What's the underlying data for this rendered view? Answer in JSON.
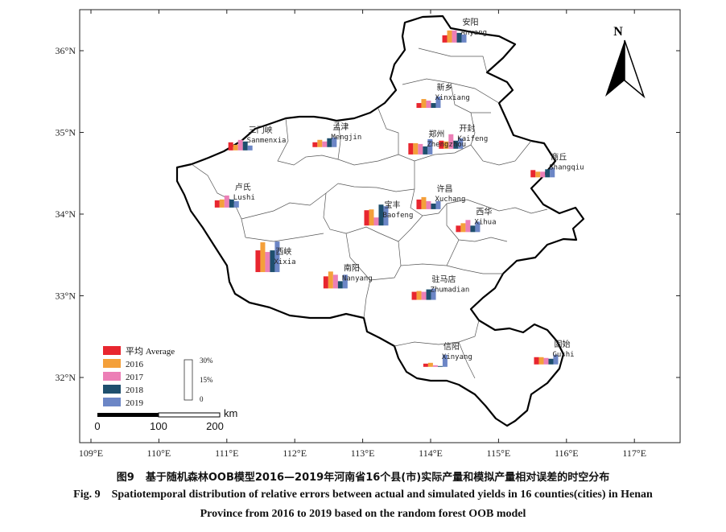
{
  "map": {
    "axes": {
      "lon_ticks": [
        "109°E",
        "110°E",
        "111°E",
        "112°E",
        "113°E",
        "114°E",
        "115°E",
        "116°E",
        "117°E"
      ],
      "lat_ticks": [
        "36°N",
        "35°N",
        "34°N",
        "33°N",
        "32°N"
      ]
    },
    "north_arrow": {
      "label": "N"
    },
    "scale_bar": {
      "labels": [
        "0",
        "100",
        "200"
      ],
      "unit": "km"
    },
    "legend": {
      "series": [
        {
          "name": "平均 Average",
          "color": "#e8262f"
        },
        {
          "name": "2016",
          "color": "#f4a03a"
        },
        {
          "name": "2017",
          "color": "#ec7fb6"
        },
        {
          "name": "2018",
          "color": "#1e4f6e"
        },
        {
          "name": "2019",
          "color": "#6c86c6"
        }
      ],
      "scale_ticks": [
        "30%",
        "15%",
        "0"
      ]
    },
    "counties": [
      {
        "cn": "安阳",
        "en": "Anyang",
        "lon": 114.35,
        "lat": 36.1,
        "values": [
          0.09,
          0.15,
          0.15,
          0.12,
          0.1
        ]
      },
      {
        "cn": "新乡",
        "en": "Xinxiang",
        "lon": 113.97,
        "lat": 35.3,
        "values": [
          0.06,
          0.11,
          0.09,
          0.06,
          0.14
        ]
      },
      {
        "cn": "三门峡",
        "en": "Sanmenxia",
        "lon": 111.2,
        "lat": 34.78,
        "values": [
          0.1,
          0.07,
          0.13,
          0.11,
          0.06
        ]
      },
      {
        "cn": "孟津",
        "en": "Mengjin",
        "lon": 112.44,
        "lat": 34.82,
        "values": [
          0.06,
          0.09,
          0.07,
          0.11,
          0.12
        ]
      },
      {
        "cn": "郑州",
        "en": "Zhengzhou",
        "lon": 113.85,
        "lat": 34.73,
        "values": [
          0.14,
          0.14,
          0.13,
          0.1,
          0.19
        ]
      },
      {
        "cn": "开封",
        "en": "Kaifeng",
        "lon": 114.3,
        "lat": 34.8,
        "values": [
          0.1,
          0.09,
          0.18,
          0.1,
          0.13
        ]
      },
      {
        "cn": "商丘",
        "en": "Shangqiu",
        "lon": 115.65,
        "lat": 34.45,
        "values": [
          0.09,
          0.07,
          0.07,
          0.1,
          0.12
        ]
      },
      {
        "cn": "卢氏",
        "en": "Lushi",
        "lon": 111.0,
        "lat": 34.08,
        "values": [
          0.09,
          0.1,
          0.15,
          0.1,
          0.08
        ]
      },
      {
        "cn": "许昌",
        "en": "Xuchang",
        "lon": 113.97,
        "lat": 34.06,
        "values": [
          0.12,
          0.15,
          0.1,
          0.07,
          0.1
        ]
      },
      {
        "cn": "宝丰",
        "en": "Baofeng",
        "lon": 113.2,
        "lat": 33.86,
        "values": [
          0.19,
          0.2,
          0.1,
          0.26,
          0.24
        ]
      },
      {
        "cn": "西华",
        "en": "Xihua",
        "lon": 114.55,
        "lat": 33.78,
        "values": [
          0.08,
          0.11,
          0.15,
          0.08,
          0.13
        ]
      },
      {
        "cn": "西峡",
        "en": "Xixia",
        "lon": 111.6,
        "lat": 33.29,
        "values": [
          0.27,
          0.37,
          0.25,
          0.27,
          0.38
        ]
      },
      {
        "cn": "南阳",
        "en": "Nanyang",
        "lon": 112.6,
        "lat": 33.09,
        "values": [
          0.15,
          0.21,
          0.17,
          0.09,
          0.17
        ]
      },
      {
        "cn": "驻马店",
        "en": "Zhumadian",
        "lon": 113.9,
        "lat": 32.95,
        "values": [
          0.1,
          0.11,
          0.1,
          0.13,
          0.14
        ]
      },
      {
        "cn": "信阳",
        "en": "Xinyang",
        "lon": 114.07,
        "lat": 32.13,
        "values": [
          0.04,
          0.05,
          0.02,
          0.01,
          0.15
        ]
      },
      {
        "cn": "固始",
        "en": "Gushi",
        "lon": 115.7,
        "lat": 32.16,
        "values": [
          0.09,
          0.09,
          0.08,
          0.07,
          0.12
        ]
      }
    ]
  },
  "caption": {
    "cn_label": "图9",
    "cn_text": "基于随机森林OOB模型2016—2019年河南省16个县(市)实际产量和模拟产量相对误差的时空分布",
    "en_label": "Fig. 9",
    "en_line1": "Spatiotemporal distribution of relative errors between actual and simulated yields in 16 counties(cities) in Henan",
    "en_line2": "Province from 2016 to 2019 based on the random forest OOB model"
  }
}
